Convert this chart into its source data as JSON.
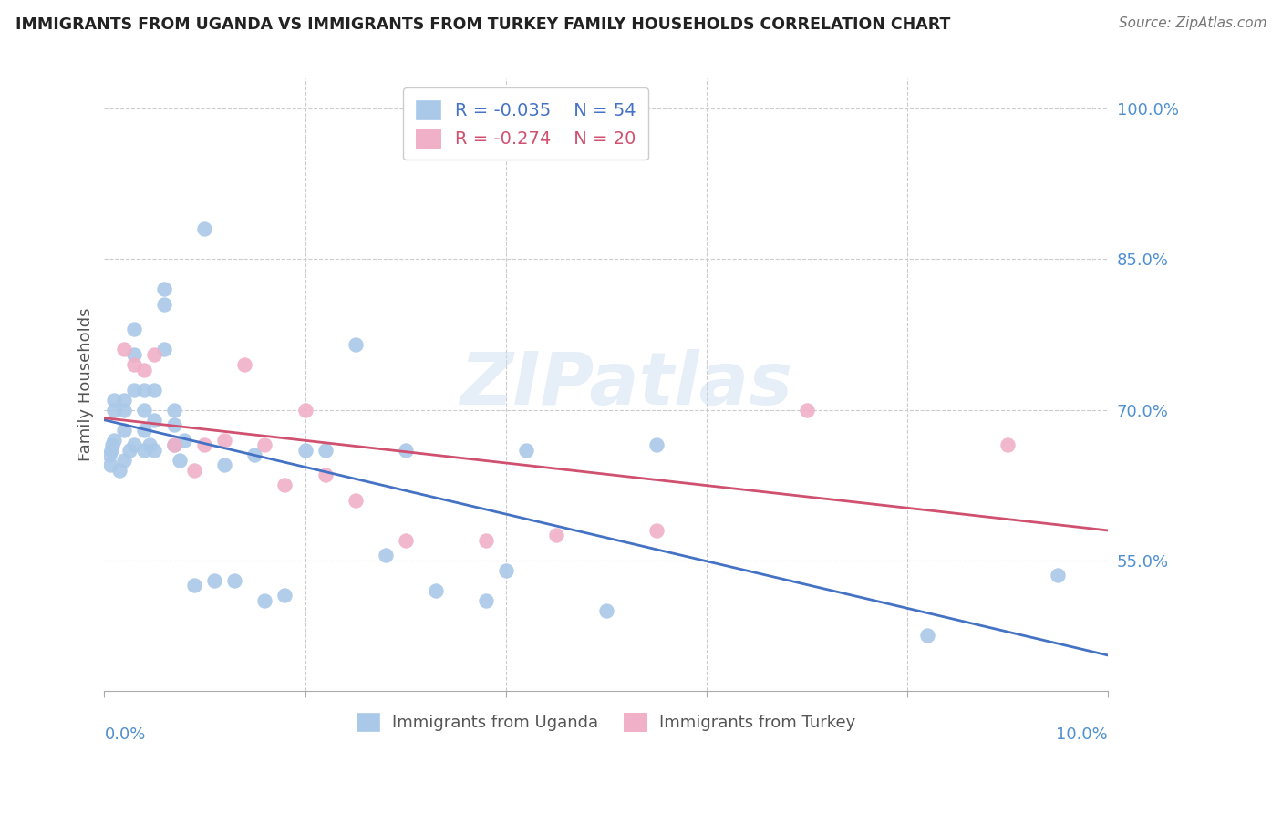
{
  "title": "IMMIGRANTS FROM UGANDA VS IMMIGRANTS FROM TURKEY FAMILY HOUSEHOLDS CORRELATION CHART",
  "source": "Source: ZipAtlas.com",
  "ylabel": "Family Households",
  "xlim": [
    0.0,
    0.1
  ],
  "ylim": [
    0.42,
    1.03
  ],
  "yticks": [
    0.55,
    0.7,
    0.85,
    1.0
  ],
  "ytick_labels": [
    "55.0%",
    "70.0%",
    "85.0%",
    "100.0%"
  ],
  "xtick_positions": [
    0.0,
    0.02,
    0.04,
    0.06,
    0.08,
    0.1
  ],
  "watermark": "ZIPatlas",
  "legend_uganda": "Immigrants from Uganda",
  "legend_turkey": "Immigrants from Turkey",
  "r_uganda": "-0.035",
  "n_uganda": "54",
  "r_turkey": "-0.274",
  "n_turkey": "20",
  "uganda_color": "#aac8e8",
  "turkey_color": "#f0b0c8",
  "uganda_line_color": "#4472c4",
  "turkey_line_color": "#d05070",
  "axis_color": "#5090d0",
  "title_color": "#222222",
  "source_color": "#777777",
  "grid_color": "#cccccc",
  "background_color": "#ffffff",
  "uganda_x": [
    0.0005,
    0.0006,
    0.0007,
    0.0008,
    0.001,
    0.001,
    0.001,
    0.0015,
    0.002,
    0.002,
    0.002,
    0.002,
    0.0025,
    0.003,
    0.003,
    0.003,
    0.003,
    0.004,
    0.004,
    0.004,
    0.004,
    0.0045,
    0.005,
    0.005,
    0.005,
    0.006,
    0.006,
    0.006,
    0.007,
    0.007,
    0.007,
    0.0075,
    0.008,
    0.009,
    0.01,
    0.011,
    0.012,
    0.013,
    0.015,
    0.016,
    0.018,
    0.02,
    0.022,
    0.025,
    0.028,
    0.03,
    0.033,
    0.038,
    0.04,
    0.042,
    0.05,
    0.055,
    0.082,
    0.095
  ],
  "uganda_y": [
    0.655,
    0.645,
    0.66,
    0.665,
    0.7,
    0.71,
    0.67,
    0.64,
    0.7,
    0.71,
    0.68,
    0.65,
    0.66,
    0.78,
    0.755,
    0.72,
    0.665,
    0.72,
    0.7,
    0.68,
    0.66,
    0.665,
    0.72,
    0.69,
    0.66,
    0.82,
    0.805,
    0.76,
    0.7,
    0.685,
    0.665,
    0.65,
    0.67,
    0.525,
    0.88,
    0.53,
    0.645,
    0.53,
    0.655,
    0.51,
    0.515,
    0.66,
    0.66,
    0.765,
    0.555,
    0.66,
    0.52,
    0.51,
    0.54,
    0.66,
    0.5,
    0.665,
    0.475,
    0.535
  ],
  "turkey_x": [
    0.002,
    0.003,
    0.004,
    0.005,
    0.007,
    0.009,
    0.01,
    0.012,
    0.014,
    0.016,
    0.018,
    0.02,
    0.022,
    0.025,
    0.03,
    0.038,
    0.045,
    0.055,
    0.07,
    0.09
  ],
  "turkey_y": [
    0.76,
    0.745,
    0.74,
    0.755,
    0.665,
    0.64,
    0.665,
    0.67,
    0.745,
    0.665,
    0.625,
    0.7,
    0.635,
    0.61,
    0.57,
    0.57,
    0.575,
    0.58,
    0.7,
    0.665
  ],
  "figsize": [
    14.06,
    8.92
  ],
  "dpi": 100
}
